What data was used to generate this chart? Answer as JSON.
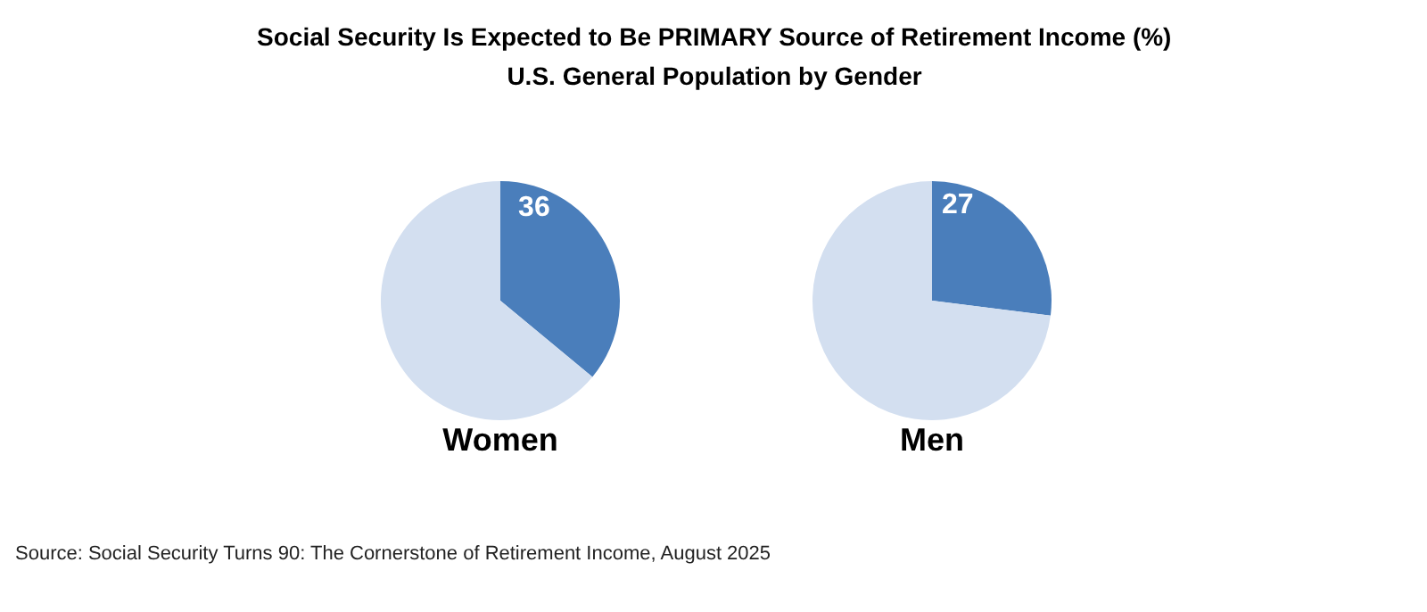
{
  "chart_data": [
    {
      "type": "other",
      "title": "Social Security Is Expected to Be PRIMARY Source of Retirement Income (%)",
      "subtitle": "U.S. General Population by Gender",
      "annotations": [
        "Source: Social Security Turns 90: The Cornerstone of Retirement Income, August 2025"
      ]
    },
    {
      "type": "pie",
      "title": "Women",
      "categories": [
        null,
        null
      ],
      "values": [
        36,
        64
      ],
      "colors": [
        "#4a7ebb",
        "#d3dff0"
      ],
      "value_labels": [
        "36",
        null
      ]
    },
    {
      "type": "pie",
      "title": "Men",
      "categories": [
        null,
        null
      ],
      "values": [
        27,
        73
      ],
      "colors": [
        "#4a7ebb",
        "#d3dff0"
      ],
      "value_labels": [
        "27",
        null
      ]
    }
  ]
}
